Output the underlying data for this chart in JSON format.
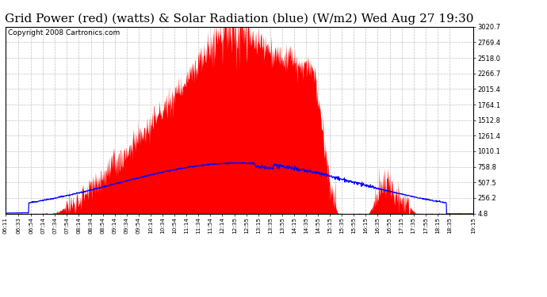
{
  "title": "Grid Power (red) (watts) & Solar Radiation (blue) (W/m2) Wed Aug 27 19:30",
  "copyright": "Copyright 2008 Cartronics.com",
  "background_color": "#ffffff",
  "plot_bg_color": "#ffffff",
  "grid_color": "#bbbbbb",
  "ytick_labels": [
    "4.8",
    "256.2",
    "507.5",
    "758.8",
    "1010.1",
    "1261.4",
    "1512.8",
    "1764.1",
    "2015.4",
    "2266.7",
    "2518.0",
    "2769.4",
    "3020.7"
  ],
  "ytick_values": [
    4.8,
    256.2,
    507.5,
    758.8,
    1010.1,
    1261.4,
    1512.8,
    1764.1,
    2015.4,
    2266.7,
    2518.0,
    2769.4,
    3020.7
  ],
  "ymin": 4.8,
  "ymax": 3020.7,
  "xtick_labels": [
    "06:11",
    "06:33",
    "06:54",
    "07:14",
    "07:34",
    "07:54",
    "08:14",
    "08:34",
    "08:54",
    "09:14",
    "09:34",
    "09:54",
    "10:14",
    "10:34",
    "10:54",
    "11:14",
    "11:34",
    "11:54",
    "12:14",
    "12:35",
    "12:55",
    "13:15",
    "13:35",
    "13:55",
    "14:15",
    "14:35",
    "14:55",
    "15:15",
    "15:35",
    "15:55",
    "16:15",
    "16:35",
    "16:55",
    "17:15",
    "17:35",
    "17:55",
    "18:15",
    "18:35",
    "19:15"
  ],
  "red_fill_color": "#ff0000",
  "blue_line_color": "#0000ff",
  "title_fontsize": 11,
  "copyright_fontsize": 6.5
}
